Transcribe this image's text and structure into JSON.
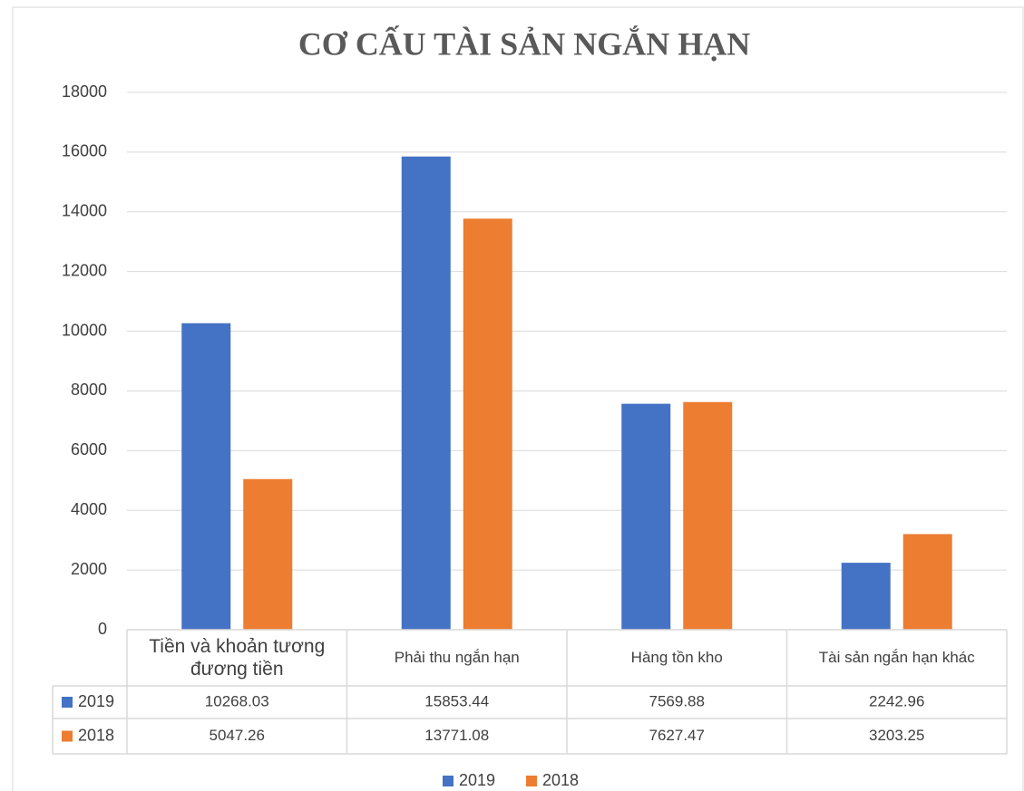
{
  "chart_data": {
    "type": "bar",
    "title": "CƠ CẤU TÀI SẢN NGẮN HẠN",
    "categories": [
      "Tiền và khoản tương đương tiền",
      "Phải thu ngắn hạn",
      "Hàng tồn kho",
      "Tài sản ngắn hạn khác"
    ],
    "series": [
      {
        "name": "2019",
        "color": "#4472c4",
        "values": [
          10268.03,
          15853.44,
          7569.88,
          2242.96
        ]
      },
      {
        "name": "2018",
        "color": "#ed7d31",
        "values": [
          5047.26,
          13771.08,
          7627.47,
          3203.25
        ]
      }
    ],
    "ylim": [
      0,
      18000
    ],
    "yticks": [
      0,
      2000,
      4000,
      6000,
      8000,
      10000,
      12000,
      14000,
      16000,
      18000
    ],
    "grid": true,
    "legend": "bottom",
    "data_table": true
  }
}
